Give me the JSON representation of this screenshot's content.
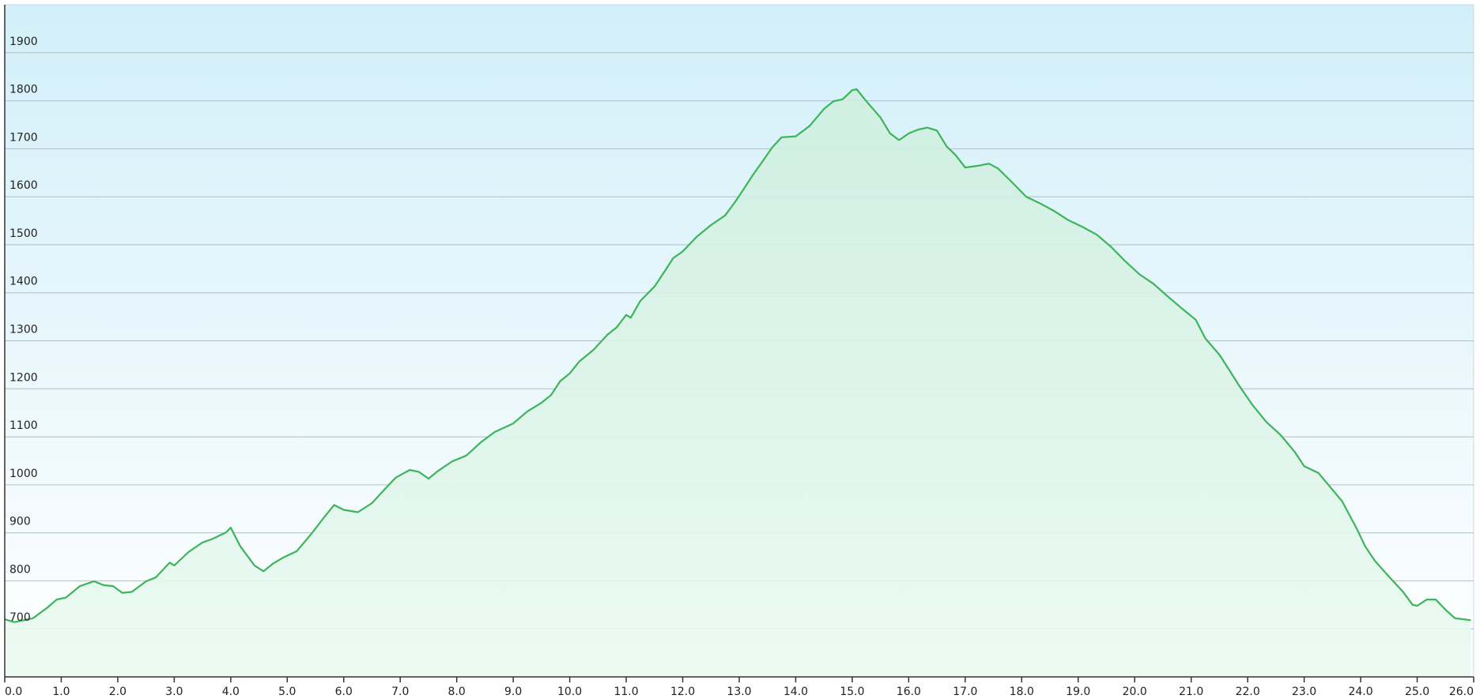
{
  "chart_data": {
    "type": "area",
    "color": "#3cb45a",
    "fill": "#d8f5e6",
    "grid": true,
    "x": [
      0,
      0.17,
      0.5,
      0.75,
      0.92,
      1.08,
      1.33,
      1.58,
      1.75,
      1.92,
      2.08,
      2.25,
      2.5,
      2.67,
      2.92,
      3.0,
      3.25,
      3.5,
      3.67,
      3.92,
      4.0,
      4.17,
      4.42,
      4.58,
      4.75,
      4.92,
      5.17,
      5.42,
      5.67,
      5.83,
      6.0,
      6.25,
      6.5,
      6.75,
      6.92,
      7.17,
      7.33,
      7.5,
      7.67,
      7.92,
      8.17,
      8.42,
      8.67,
      9.0,
      9.25,
      9.5,
      9.67,
      9.83,
      10.0,
      10.17,
      10.42,
      10.67,
      10.83,
      11.0,
      11.08,
      11.25,
      11.5,
      11.67,
      11.83,
      12.0,
      12.25,
      12.5,
      12.75,
      12.92,
      13.08,
      13.25,
      13.42,
      13.58,
      13.75,
      14.0,
      14.25,
      14.5,
      14.67,
      14.83,
      15.0,
      15.08,
      15.25,
      15.5,
      15.67,
      15.83,
      16.0,
      16.17,
      16.33,
      16.5,
      16.67,
      16.83,
      17.0,
      17.25,
      17.42,
      17.58,
      17.83,
      18.08,
      18.33,
      18.58,
      18.83,
      19.08,
      19.33,
      19.58,
      19.83,
      20.08,
      20.33,
      20.58,
      20.83,
      21.08,
      21.25,
      21.5,
      21.67,
      21.83,
      22.08,
      22.33,
      22.58,
      22.83,
      23.0,
      23.25,
      23.5,
      23.67,
      23.92,
      24.08,
      24.25,
      24.5,
      24.75,
      24.92,
      25.0,
      25.17,
      25.33,
      25.5,
      25.67,
      25.83,
      25.95
    ],
    "values": [
      720,
      714,
      722,
      744,
      761,
      765,
      789,
      799,
      791,
      789,
      775,
      777,
      799,
      807,
      838,
      832,
      860,
      880,
      887,
      901,
      911,
      872,
      832,
      820,
      836,
      848,
      862,
      897,
      935,
      958,
      948,
      943,
      962,
      994,
      1015,
      1031,
      1027,
      1013,
      1029,
      1049,
      1061,
      1088,
      1110,
      1128,
      1153,
      1171,
      1187,
      1216,
      1232,
      1257,
      1281,
      1313,
      1328,
      1354,
      1348,
      1383,
      1413,
      1443,
      1472,
      1486,
      1517,
      1541,
      1561,
      1588,
      1616,
      1647,
      1675,
      1702,
      1724,
      1726,
      1748,
      1783,
      1799,
      1803,
      1822,
      1824,
      1799,
      1765,
      1732,
      1718,
      1732,
      1740,
      1744,
      1738,
      1705,
      1687,
      1661,
      1665,
      1669,
      1659,
      1630,
      1600,
      1586,
      1570,
      1551,
      1537,
      1521,
      1496,
      1466,
      1439,
      1419,
      1393,
      1368,
      1344,
      1305,
      1271,
      1240,
      1210,
      1167,
      1131,
      1104,
      1069,
      1039,
      1025,
      990,
      966,
      911,
      872,
      842,
      809,
      777,
      750,
      748,
      761,
      761,
      740,
      722,
      720,
      718
    ],
    "xlim": [
      0,
      26
    ],
    "ylim": [
      600,
      2000
    ],
    "xticks": [
      {
        "value": 0,
        "label": "0.0"
      },
      {
        "value": 1,
        "label": "1.0"
      },
      {
        "value": 2,
        "label": "2.0"
      },
      {
        "value": 3,
        "label": "3.0"
      },
      {
        "value": 4,
        "label": "4.0"
      },
      {
        "value": 5,
        "label": "5.0"
      },
      {
        "value": 6,
        "label": "6.0"
      },
      {
        "value": 7,
        "label": "7.0"
      },
      {
        "value": 8,
        "label": "8.0"
      },
      {
        "value": 9,
        "label": "9.0"
      },
      {
        "value": 10,
        "label": "10.0"
      },
      {
        "value": 11,
        "label": "11.0"
      },
      {
        "value": 12,
        "label": "12.0"
      },
      {
        "value": 13,
        "label": "13.0"
      },
      {
        "value": 14,
        "label": "14.0"
      },
      {
        "value": 15,
        "label": "15.0"
      },
      {
        "value": 16,
        "label": "16.0"
      },
      {
        "value": 17,
        "label": "17.0"
      },
      {
        "value": 18,
        "label": "18.0"
      },
      {
        "value": 19,
        "label": "19.0"
      },
      {
        "value": 20,
        "label": "20.0"
      },
      {
        "value": 21,
        "label": "21.0"
      },
      {
        "value": 22,
        "label": "22.0"
      },
      {
        "value": 23,
        "label": "23.0"
      },
      {
        "value": 24,
        "label": "24.0"
      },
      {
        "value": 25,
        "label": "25.0"
      },
      {
        "value": 26,
        "label": "26.0"
      }
    ],
    "yticks": [
      700,
      800,
      900,
      1000,
      1100,
      1200,
      1300,
      1400,
      1500,
      1600,
      1700,
      1800,
      1900
    ]
  }
}
